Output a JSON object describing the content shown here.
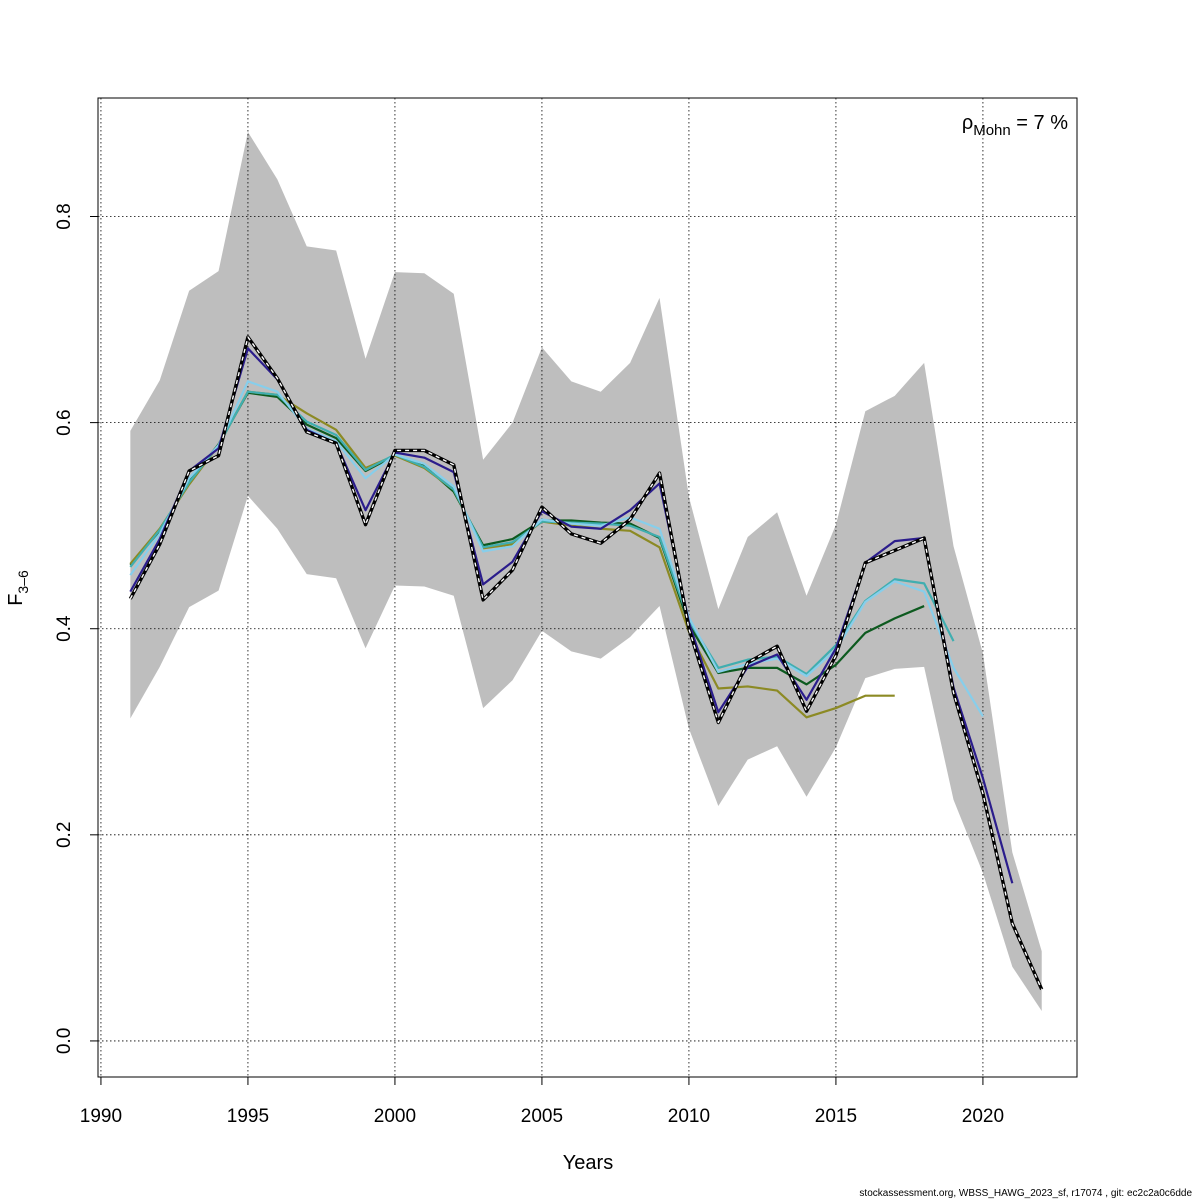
{
  "chart_data": {
    "type": "line",
    "xlabel": "Years",
    "ylabel_main": "F",
    "ylabel_sub": "3–6",
    "xlim": [
      1989.9,
      2023.2
    ],
    "ylim": [
      -0.035,
      0.915
    ],
    "x_ticks": [
      1990,
      1995,
      2000,
      2005,
      2010,
      2015,
      2020
    ],
    "y_ticks": [
      0.0,
      0.2,
      0.4,
      0.6,
      0.8
    ],
    "x_tick_labels": [
      "1990",
      "1995",
      "2000",
      "2005",
      "2010",
      "2015",
      "2020"
    ],
    "y_tick_labels": [
      "0.0",
      "0.2",
      "0.4",
      "0.6",
      "0.8"
    ],
    "grid": true,
    "annotation": {
      "symbol": "ρ",
      "subscript": "Mohn",
      "text": " = 7 %"
    },
    "footer": "stockassessment.org, WBSS_HAWG_2023_sf, r17074 , git: ec2c2a0c6dde",
    "confidence_band": {
      "color": "#bebebe",
      "x": [
        1991,
        1992,
        1993,
        1994,
        1995,
        1996,
        1997,
        1998,
        1999,
        2000,
        2001,
        2002,
        2003,
        2004,
        2005,
        2006,
        2007,
        2008,
        2009,
        2010,
        2011,
        2012,
        2013,
        2014,
        2015,
        2016,
        2017,
        2018,
        2019,
        2020,
        2021,
        2022
      ],
      "upper": [
        0.592,
        0.641,
        0.728,
        0.747,
        0.882,
        0.836,
        0.771,
        0.767,
        0.662,
        0.746,
        0.745,
        0.725,
        0.564,
        0.6,
        0.673,
        0.64,
        0.63,
        0.658,
        0.721,
        0.528,
        0.419,
        0.489,
        0.513,
        0.432,
        0.501,
        0.611,
        0.626,
        0.658,
        0.48,
        0.376,
        0.183,
        0.087
      ],
      "lower": [
        0.313,
        0.363,
        0.421,
        0.437,
        0.529,
        0.497,
        0.453,
        0.449,
        0.381,
        0.442,
        0.441,
        0.432,
        0.323,
        0.35,
        0.398,
        0.378,
        0.371,
        0.392,
        0.422,
        0.303,
        0.228,
        0.273,
        0.286,
        0.237,
        0.285,
        0.352,
        0.361,
        0.363,
        0.234,
        0.163,
        0.072,
        0.029
      ]
    },
    "series": [
      {
        "color": "#0d5a1f",
        "x": [
          1991,
          1992,
          1993,
          1994,
          1995,
          1996,
          1997,
          1998,
          1999,
          2000,
          2001,
          2002,
          2003,
          2004,
          2005,
          2006,
          2007,
          2008,
          2009,
          2010,
          2011,
          2012,
          2013,
          2014,
          2015,
          2016,
          2017,
          2018
        ],
        "values": [
          0.462,
          0.495,
          0.543,
          0.579,
          0.629,
          0.625,
          0.598,
          0.585,
          0.553,
          0.568,
          0.558,
          0.533,
          0.481,
          0.487,
          0.505,
          0.505,
          0.503,
          0.502,
          0.488,
          0.404,
          0.357,
          0.362,
          0.362,
          0.346,
          0.365,
          0.396,
          0.41,
          0.422
        ]
      },
      {
        "color": "#8c8a24",
        "x": [
          1991,
          1992,
          1993,
          1994,
          1995,
          1996,
          1997,
          1998,
          1999,
          2000,
          2001,
          2002,
          2003,
          2004,
          2005,
          2006,
          2007,
          2008,
          2009,
          2010,
          2011,
          2012,
          2013,
          2014,
          2015,
          2016,
          2017
        ],
        "values": [
          0.463,
          0.497,
          0.54,
          0.578,
          0.63,
          0.627,
          0.609,
          0.593,
          0.556,
          0.568,
          0.556,
          0.535,
          0.478,
          0.482,
          0.504,
          0.5,
          0.497,
          0.495,
          0.479,
          0.397,
          0.342,
          0.344,
          0.34,
          0.314,
          0.323,
          0.335,
          0.335
        ]
      },
      {
        "color": "#40aeb0",
        "x": [
          1991,
          1992,
          1993,
          1994,
          1995,
          1996,
          1997,
          1998,
          1999,
          2000,
          2001,
          2002,
          2003,
          2004,
          2005,
          2006,
          2007,
          2008,
          2009,
          2010,
          2011,
          2012,
          2013,
          2014,
          2015,
          2016,
          2017,
          2018,
          2019
        ],
        "values": [
          0.46,
          0.496,
          0.542,
          0.578,
          0.63,
          0.627,
          0.601,
          0.588,
          0.554,
          0.569,
          0.557,
          0.535,
          0.479,
          0.484,
          0.504,
          0.503,
          0.502,
          0.5,
          0.489,
          0.408,
          0.362,
          0.37,
          0.373,
          0.356,
          0.384,
          0.427,
          0.448,
          0.444,
          0.388
        ]
      },
      {
        "color": "#87ceeb",
        "x": [
          1991,
          1992,
          1993,
          1994,
          1995,
          1996,
          1997,
          1998,
          1999,
          2000,
          2001,
          2002,
          2003,
          2004,
          2005,
          2006,
          2007,
          2008,
          2009,
          2010,
          2011,
          2012,
          2013,
          2014,
          2015,
          2016,
          2017,
          2018,
          2019,
          2020
        ],
        "values": [
          0.452,
          0.492,
          0.546,
          0.578,
          0.64,
          0.63,
          0.594,
          0.582,
          0.546,
          0.569,
          0.56,
          0.538,
          0.475,
          0.48,
          0.506,
          0.502,
          0.5,
          0.508,
          0.497,
          0.411,
          0.358,
          0.366,
          0.371,
          0.354,
          0.38,
          0.426,
          0.446,
          0.436,
          0.362,
          0.315
        ]
      },
      {
        "color": "#2b1d8c",
        "x": [
          1991,
          1992,
          1993,
          1994,
          1995,
          1996,
          1997,
          1998,
          1999,
          2000,
          2001,
          2002,
          2003,
          2004,
          2005,
          2006,
          2007,
          2008,
          2009,
          2010,
          2011,
          2012,
          2013,
          2014,
          2015,
          2016,
          2017,
          2018,
          2019,
          2020,
          2021
        ],
        "values": [
          0.436,
          0.487,
          0.553,
          0.575,
          0.672,
          0.642,
          0.593,
          0.58,
          0.515,
          0.571,
          0.566,
          0.552,
          0.443,
          0.465,
          0.514,
          0.499,
          0.497,
          0.515,
          0.541,
          0.406,
          0.319,
          0.363,
          0.375,
          0.331,
          0.381,
          0.464,
          0.485,
          0.488,
          0.343,
          0.255,
          0.153
        ]
      },
      {
        "color": "#000000",
        "dashed": true,
        "x": [
          1991,
          1992,
          1993,
          1994,
          1995,
          1996,
          1997,
          1998,
          1999,
          2000,
          2001,
          2002,
          2003,
          2004,
          2005,
          2006,
          2007,
          2008,
          2009,
          2010,
          2011,
          2012,
          2013,
          2014,
          2015,
          2016,
          2017,
          2018,
          2019,
          2020,
          2021,
          2022
        ],
        "values": [
          0.429,
          0.482,
          0.553,
          0.568,
          0.683,
          0.643,
          0.591,
          0.58,
          0.501,
          0.573,
          0.573,
          0.559,
          0.428,
          0.457,
          0.518,
          0.492,
          0.483,
          0.506,
          0.551,
          0.4,
          0.309,
          0.367,
          0.383,
          0.32,
          0.374,
          0.464,
          0.476,
          0.488,
          0.338,
          0.24,
          0.114,
          0.05
        ]
      }
    ]
  }
}
